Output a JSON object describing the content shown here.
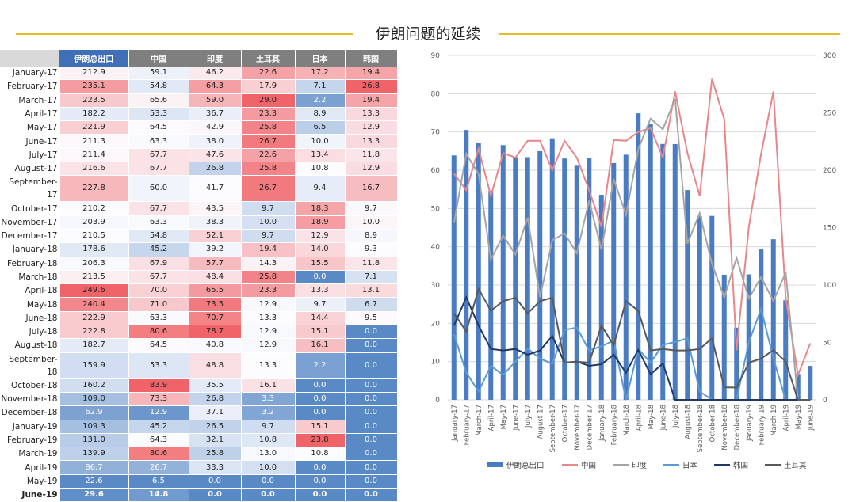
{
  "title": "伊朗问题的延续",
  "table": {
    "headers": [
      "伊朗总出口",
      "中国",
      "印度",
      "土耳其",
      "日本",
      "韩国"
    ],
    "rows": [
      {
        "label": "January-17",
        "values": [
          "212.9",
          "59.1",
          "46.2",
          "22.6",
          "17.2",
          "19.4"
        ]
      },
      {
        "label": "February-17",
        "values": [
          "235.1",
          "54.8",
          "64.3",
          "17.9",
          "7.1",
          "26.8"
        ]
      },
      {
        "label": "March-17",
        "values": [
          "223.5",
          "65.6",
          "59.0",
          "29.0",
          "2.2",
          "19.4"
        ]
      },
      {
        "label": "April-17",
        "values": [
          "182.2",
          "53.3",
          "36.7",
          "23.3",
          "8.9",
          "13.3"
        ]
      },
      {
        "label": "May-17",
        "values": [
          "221.9",
          "64.5",
          "42.9",
          "25.8",
          "6.5",
          "12.9"
        ]
      },
      {
        "label": "June-17",
        "values": [
          "211.3",
          "63.3",
          "38.0",
          "26.7",
          "10.0",
          "13.3"
        ]
      },
      {
        "label": "July-17",
        "values": [
          "211.4",
          "67.7",
          "47.6",
          "22.6",
          "13.4",
          "11.8"
        ]
      },
      {
        "label": "August-17",
        "values": [
          "216.6",
          "67.7",
          "26.8",
          "25.8",
          "10.8",
          "12.9"
        ]
      },
      {
        "label": "September-17",
        "values": [
          "227.8",
          "60.0",
          "41.7",
          "26.7",
          "9.4",
          "16.7"
        ]
      },
      {
        "label": "October-17",
        "values": [
          "210.2",
          "67.7",
          "43.5",
          "9.7",
          "18.3",
          "9.7"
        ]
      },
      {
        "label": "November-17",
        "values": [
          "203.9",
          "63.3",
          "38.3",
          "10.0",
          "18.9",
          "10.0"
        ]
      },
      {
        "label": "December-17",
        "values": [
          "210.5",
          "54.8",
          "52.1",
          "9.7",
          "12.9",
          "8.9"
        ]
      },
      {
        "label": "January-18",
        "values": [
          "178.6",
          "45.2",
          "39.2",
          "19.4",
          "14.0",
          "9.3"
        ]
      },
      {
        "label": "February-18",
        "values": [
          "206.3",
          "67.9",
          "57.7",
          "14.3",
          "15.5",
          "11.8"
        ]
      },
      {
        "label": "March-18",
        "values": [
          "213.5",
          "67.7",
          "48.4",
          "25.8",
          "0.0",
          "7.1"
        ]
      },
      {
        "label": "April-18",
        "values": [
          "249.6",
          "70.0",
          "65.5",
          "23.3",
          "13.3",
          "13.1"
        ]
      },
      {
        "label": "May-18",
        "values": [
          "240.4",
          "71.0",
          "73.5",
          "12.9",
          "9.7",
          "6.7"
        ]
      },
      {
        "label": "June-18",
        "values": [
          "222.9",
          "63.3",
          "70.7",
          "13.3",
          "14.4",
          "9.5"
        ]
      },
      {
        "label": "July-18",
        "values": [
          "222.8",
          "80.6",
          "78.7",
          "12.9",
          "15.1",
          "0.0"
        ]
      },
      {
        "label": "August-18",
        "values": [
          "182.7",
          "64.5",
          "40.8",
          "12.9",
          "16.1",
          "0.0"
        ]
      },
      {
        "label": "September-18",
        "values": [
          "159.9",
          "53.3",
          "48.8",
          "13.3",
          "2.2",
          "0.0"
        ]
      },
      {
        "label": "October-18",
        "values": [
          "160.2",
          "83.9",
          "35.5",
          "16.1",
          "0.0",
          "0.0"
        ]
      },
      {
        "label": "November-18",
        "values": [
          "109.0",
          "73.3",
          "26.8",
          "3.3",
          "0.0",
          "0.0"
        ]
      },
      {
        "label": "December-18",
        "values": [
          "62.9",
          "12.9",
          "37.1",
          "3.2",
          "0.0",
          "0.0"
        ]
      },
      {
        "label": "January-19",
        "values": [
          "109.3",
          "45.2",
          "26.5",
          "9.7",
          "15.1",
          "0.0"
        ]
      },
      {
        "label": "February-19",
        "values": [
          "131.0",
          "64.3",
          "32.1",
          "10.8",
          "23.8",
          "0.0"
        ]
      },
      {
        "label": "March-19",
        "values": [
          "139.9",
          "80.6",
          "25.8",
          "13.0",
          "10.8",
          "0.0"
        ]
      },
      {
        "label": "April-19",
        "values": [
          "86.7",
          "26.7",
          "33.3",
          "10.0",
          "0.0",
          "0.0"
        ]
      },
      {
        "label": "May-19",
        "values": [
          "22.6",
          "6.5",
          "0.0",
          "0.0",
          "0.0",
          "0.0"
        ]
      },
      {
        "label": "June-19",
        "values": [
          "29.6",
          "14.8",
          "0.0",
          "0.0",
          "0.0",
          "0.0"
        ]
      }
    ]
  },
  "chart_data": {
    "type": "bar",
    "categories": [
      "January-17",
      "February-17",
      "March-17",
      "April-17",
      "May-17",
      "June-17",
      "July-17",
      "August-17",
      "September-17",
      "October-17",
      "November-17",
      "December-17",
      "January-18",
      "February-18",
      "March-18",
      "April-18",
      "May-18",
      "June-18",
      "July-18",
      "August-18",
      "September-18",
      "October-18",
      "November-18",
      "December-18",
      "January-19",
      "February-19",
      "March-19",
      "April-19",
      "May-19",
      "June-19"
    ],
    "y_left": {
      "ticks": [
        0,
        10,
        20,
        30,
        40,
        50,
        60,
        70,
        80,
        90
      ],
      "ylim": [
        0,
        90
      ]
    },
    "y_right": {
      "ticks": [
        0,
        50,
        100,
        150,
        200,
        250,
        300
      ],
      "ylim": [
        0,
        300
      ]
    },
    "series": [
      {
        "name": "伊朗总出口",
        "kind": "bar",
        "axis": "right",
        "color": "#4a7cc3",
        "values": [
          212.9,
          235.1,
          223.5,
          182.2,
          221.9,
          211.3,
          211.4,
          216.6,
          227.8,
          210.2,
          203.9,
          210.5,
          178.6,
          206.3,
          213.5,
          249.6,
          240.4,
          222.9,
          222.8,
          182.7,
          159.9,
          160.2,
          109.0,
          62.9,
          109.3,
          131.0,
          139.9,
          86.7,
          22.6,
          29.6
        ]
      },
      {
        "name": "中国",
        "kind": "line",
        "axis": "left",
        "color": "#e8868a",
        "values": [
          59.1,
          54.8,
          65.6,
          53.3,
          64.5,
          63.3,
          67.7,
          67.7,
          60.0,
          67.7,
          63.3,
          54.8,
          45.2,
          67.9,
          67.7,
          70.0,
          71.0,
          63.3,
          80.6,
          64.5,
          53.3,
          83.9,
          73.3,
          12.9,
          45.2,
          64.3,
          80.6,
          26.7,
          6.5,
          14.8
        ]
      },
      {
        "name": "印度",
        "kind": "line",
        "axis": "left",
        "color": "#a5a5a5",
        "values": [
          46.2,
          64.3,
          59.0,
          36.7,
          42.9,
          38.0,
          47.6,
          26.8,
          41.7,
          43.5,
          38.3,
          52.1,
          39.2,
          57.7,
          48.4,
          65.5,
          73.5,
          70.7,
          78.7,
          40.8,
          48.8,
          35.5,
          26.8,
          37.1,
          26.5,
          32.1,
          25.8,
          33.3,
          0.0,
          0.0
        ]
      },
      {
        "name": "日本",
        "kind": "line",
        "axis": "left",
        "color": "#5b9bd5",
        "values": [
          17.2,
          7.1,
          2.2,
          8.9,
          6.5,
          10.0,
          13.4,
          10.8,
          9.4,
          18.3,
          18.9,
          12.9,
          14.0,
          15.5,
          0.0,
          13.3,
          9.7,
          14.4,
          15.1,
          16.1,
          2.2,
          0.0,
          0.0,
          0.0,
          15.1,
          23.8,
          10.8,
          0.0,
          0.0,
          0.0
        ]
      },
      {
        "name": "韩国",
        "kind": "line",
        "axis": "left",
        "color": "#1f3864",
        "values": [
          19.4,
          26.8,
          19.4,
          13.3,
          12.9,
          13.3,
          11.8,
          12.9,
          16.7,
          9.7,
          10.0,
          8.9,
          9.3,
          11.8,
          7.1,
          13.1,
          6.7,
          9.5,
          0.0,
          0.0,
          0.0,
          0.0,
          0.0,
          0.0,
          0.0,
          0.0,
          0.0,
          0.0,
          0.0,
          0.0
        ]
      },
      {
        "name": "土耳其",
        "kind": "line",
        "axis": "left",
        "color": "#595959",
        "values": [
          22.6,
          17.9,
          29.0,
          23.3,
          25.8,
          26.7,
          22.6,
          25.8,
          26.7,
          9.7,
          10.0,
          9.7,
          19.4,
          14.3,
          25.8,
          23.3,
          12.9,
          13.3,
          12.9,
          12.9,
          13.3,
          16.1,
          3.3,
          3.2,
          9.7,
          10.8,
          13.0,
          10.0,
          0.0,
          0.0
        ]
      }
    ],
    "legend_position": "bottom"
  }
}
